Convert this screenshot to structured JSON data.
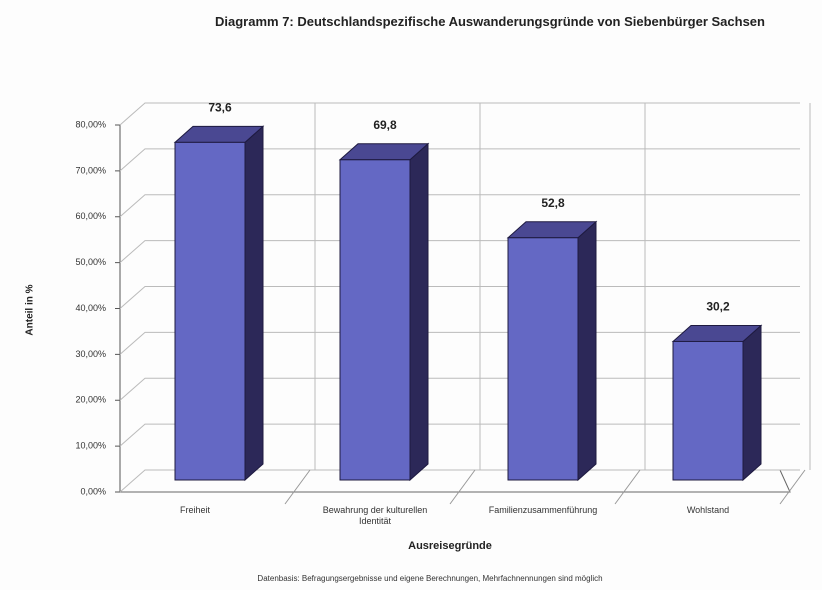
{
  "chart_data": {
    "type": "bar3d",
    "title": "Diagramm 7:   Deutschlandspezifische Auswanderungsgründe von Siebenbürger Sachsen",
    "x_label": "Ausreisegründe",
    "y_label": "Anteil in %",
    "footnote": "Datenbasis: Befragungsergebnisse und eigene Berechnungen, Mehrfachnennungen sind möglich",
    "categories": [
      "Freiheit",
      "Bewahrung der kulturellen Identität",
      "Familienzusammenführung",
      "Wohlstand"
    ],
    "values": [
      73.6,
      69.8,
      52.8,
      30.2
    ],
    "value_labels": [
      "73,6",
      "69,8",
      "52,8",
      "30,2"
    ],
    "color": "#6468c4",
    "ylim": [
      0,
      80
    ],
    "yticks": [
      {
        "value": 0,
        "label": "0,00%"
      },
      {
        "value": 10,
        "label": "10,00%"
      },
      {
        "value": 20,
        "label": "20,00%"
      },
      {
        "value": 30,
        "label": "30,00%"
      },
      {
        "value": 40,
        "label": "40,00%"
      },
      {
        "value": 50,
        "label": "50,00%"
      },
      {
        "value": 60,
        "label": "60,00%"
      },
      {
        "value": 70,
        "label": "70,00%"
      },
      {
        "value": 80,
        "label": "80,00%"
      }
    ],
    "grid": true
  }
}
